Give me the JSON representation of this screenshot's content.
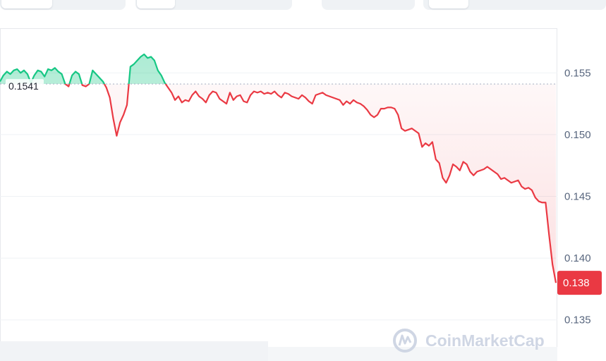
{
  "tabs": [
    {
      "name": "tab-group-1",
      "active": true
    },
    {
      "name": "tab-group-2",
      "active": true
    },
    {
      "name": "tab-group-3",
      "active": true
    },
    {
      "name": "tab-group-4",
      "active": true
    }
  ],
  "colors": {
    "up": "#16c784",
    "down": "#ea3943",
    "grid": "#eff2f5",
    "ref_line": "#a6b0c3",
    "axis_text": "#58667e"
  },
  "watermark": {
    "icon": "coinmarketcap-logo-icon",
    "text": "CoinMarketCap"
  },
  "chart_data": {
    "type": "line",
    "reference_price": 0.1541,
    "reference_label": "0.1541",
    "current_price": 0.138,
    "current_label": "0.138",
    "y_ticks": [
      {
        "value": 0.155,
        "label": "0.155"
      },
      {
        "value": 0.15,
        "label": "0.150"
      },
      {
        "value": 0.145,
        "label": "0.145"
      },
      {
        "value": 0.14,
        "label": "0.140"
      },
      {
        "value": 0.135,
        "label": "0.135"
      }
    ],
    "ylim": [
      0.1335,
      0.1585
    ],
    "grid": true,
    "series": [
      {
        "values": [
          0.1543,
          0.1548,
          0.1551,
          0.1549,
          0.1552,
          0.1553,
          0.155,
          0.1552,
          0.1549,
          0.1542,
          0.1548,
          0.1552,
          0.1551,
          0.1547,
          0.1553,
          0.1552,
          0.1554,
          0.1551,
          0.1549,
          0.1541,
          0.1539,
          0.1548,
          0.1551,
          0.1549,
          0.154,
          0.1539,
          0.1541,
          0.1552,
          0.1549,
          0.1546,
          0.1543,
          0.1538,
          0.153,
          0.1513,
          0.1499,
          0.151,
          0.1516,
          0.1524,
          0.1555,
          0.1557,
          0.156,
          0.1563,
          0.1565,
          0.1562,
          0.1563,
          0.156,
          0.1552,
          0.1548,
          0.1542,
          0.1538,
          0.1534,
          0.1528,
          0.1531,
          0.1526,
          0.1528,
          0.1527,
          0.1532,
          0.1535,
          0.1531,
          0.1529,
          0.1526,
          0.1532,
          0.1535,
          0.1534,
          0.1529,
          0.1527,
          0.1525,
          0.1534,
          0.1528,
          0.1531,
          0.1532,
          0.1527,
          0.1526,
          0.1532,
          0.1535,
          0.1534,
          0.1535,
          0.1533,
          0.1534,
          0.1533,
          0.1535,
          0.1532,
          0.153,
          0.1534,
          0.1533,
          0.1531,
          0.153,
          0.1529,
          0.1532,
          0.153,
          0.1527,
          0.1525,
          0.1532,
          0.1533,
          0.1534,
          0.1532,
          0.1531,
          0.153,
          0.1529,
          0.1528,
          0.1524,
          0.1527,
          0.1525,
          0.1528,
          0.1526,
          0.1525,
          0.1523,
          0.152,
          0.1516,
          0.1514,
          0.1516,
          0.1521,
          0.1521,
          0.1522,
          0.1522,
          0.1521,
          0.1516,
          0.1505,
          0.1503,
          0.1504,
          0.1505,
          0.1503,
          0.1501,
          0.149,
          0.1493,
          0.1491,
          0.1494,
          0.148,
          0.1477,
          0.1465,
          0.1461,
          0.1467,
          0.1476,
          0.1474,
          0.1471,
          0.1478,
          0.1476,
          0.147,
          0.1467,
          0.147,
          0.1471,
          0.1472,
          0.1474,
          0.1472,
          0.147,
          0.1468,
          0.1464,
          0.1465,
          0.1463,
          0.1461,
          0.1462,
          0.1463,
          0.1458,
          0.1456,
          0.1457,
          0.1455,
          0.1449,
          0.1446,
          0.1445,
          0.1445,
          0.1419,
          0.1395,
          0.138
        ]
      }
    ]
  }
}
